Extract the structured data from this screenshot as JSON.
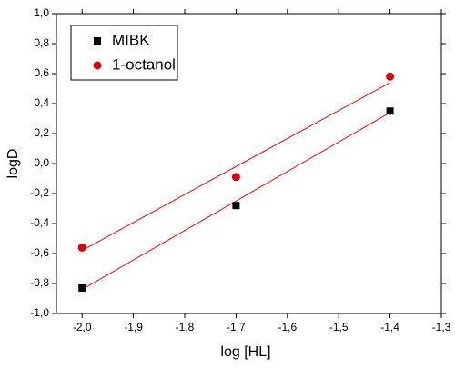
{
  "chart_data": {
    "type": "scatter",
    "x_label": "log [HL]",
    "y_label": "logD",
    "series": [
      {
        "name": "MIBK",
        "color": "#000000",
        "marker": "square",
        "x": [
          -2.0,
          -1.7,
          -1.4
        ],
        "values": [
          -0.83,
          -0.28,
          0.35
        ]
      },
      {
        "name": "1-octanol",
        "color": "#e00000",
        "marker": "circle",
        "x": [
          -2.0,
          -1.7,
          -1.4
        ],
        "values": [
          -0.56,
          -0.09,
          0.58
        ]
      }
    ],
    "fit_lines": [
      {
        "color": "#ff0000",
        "x": [
          -2.0,
          -1.4
        ],
        "values": [
          -0.84,
          0.34
        ]
      },
      {
        "color": "#ff0000",
        "x": [
          -2.0,
          -1.4
        ],
        "values": [
          -0.58,
          0.54
        ]
      }
    ],
    "xlim": [
      -2.05,
      -1.3
    ],
    "ylim": [
      -1.0,
      1.0
    ],
    "xticks": [
      {
        "value": -2.0,
        "label": "-2,0"
      },
      {
        "value": -1.9,
        "label": "-1,9"
      },
      {
        "value": -1.8,
        "label": "-1,8"
      },
      {
        "value": -1.7,
        "label": "-1,7"
      },
      {
        "value": -1.6,
        "label": "-1,6"
      },
      {
        "value": -1.5,
        "label": "-1,5"
      },
      {
        "value": -1.4,
        "label": "-1,4"
      },
      {
        "value": -1.3,
        "label": "-1,3"
      }
    ],
    "yticks": [
      {
        "value": -1.0,
        "label": "-1,0"
      },
      {
        "value": -0.8,
        "label": "-0,8"
      },
      {
        "value": -0.6,
        "label": "-0,6"
      },
      {
        "value": -0.4,
        "label": "-0,4"
      },
      {
        "value": -0.2,
        "label": "-0,2"
      },
      {
        "value": 0.0,
        "label": "0,0"
      },
      {
        "value": 0.2,
        "label": "0,2"
      },
      {
        "value": 0.4,
        "label": "0,4"
      },
      {
        "value": 0.6,
        "label": "0,6"
      },
      {
        "value": 0.8,
        "label": "0,8"
      },
      {
        "value": 1.0,
        "label": "1,0"
      }
    ],
    "grid": false,
    "legend_position": "upper-left"
  }
}
